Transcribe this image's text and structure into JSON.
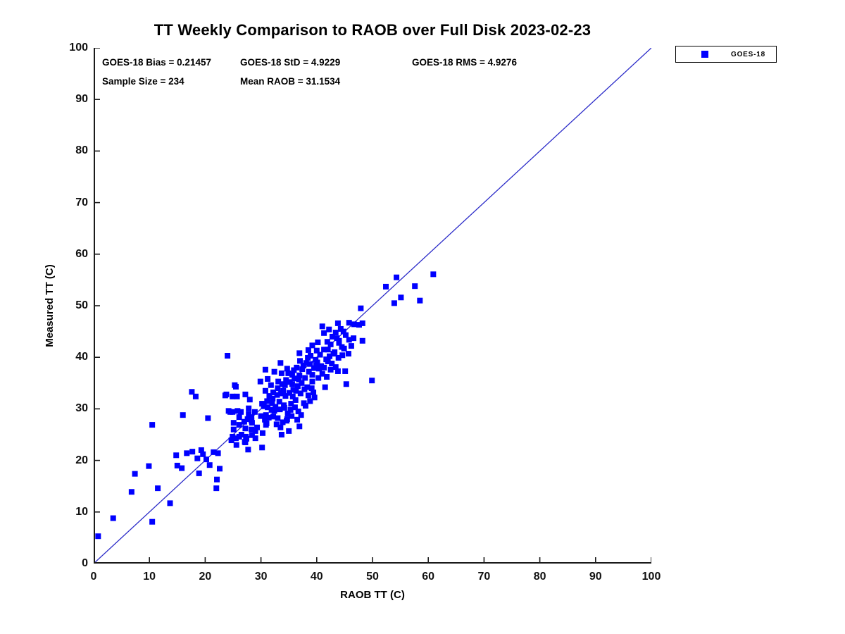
{
  "title": "TT Weekly Comparison to RAOB over Full Disk 2023-02-23",
  "annotations": {
    "bias": "GOES-18 Bias = 0.21457",
    "std": "GOES-18 StD = 4.9229",
    "rms": "GOES-18 RMS = 4.9276",
    "sample": "Sample Size = 234",
    "mean_raob": "Mean RAOB = 31.1534"
  },
  "legend": {
    "items": [
      {
        "label": "GOES-18",
        "marker_color": "#0000ff"
      }
    ]
  },
  "colors": {
    "marker": "#0000ff",
    "reference_line": "#2a2ac8",
    "axis": "#1a1a1a",
    "text": "#000000"
  },
  "chart_data": {
    "type": "scatter",
    "title": "TT Weekly Comparison to RAOB over Full Disk 2023-02-23",
    "xlabel": "RAOB TT (C)",
    "ylabel": "Measured TT (C)",
    "xlim": [
      0,
      100
    ],
    "ylim": [
      0,
      100
    ],
    "xticks": [
      0,
      10,
      20,
      30,
      40,
      50,
      60,
      70,
      80,
      90,
      100
    ],
    "yticks": [
      0,
      10,
      20,
      30,
      40,
      50,
      60,
      70,
      80,
      90,
      100
    ],
    "grid": false,
    "legend_position": "top-right-outside",
    "stats": {
      "bias": 0.21457,
      "std": 4.9229,
      "rms": 4.9276,
      "sample_size": 234,
      "mean_raob": 31.1534
    },
    "reference_line": {
      "from": [
        0,
        0
      ],
      "to": [
        100,
        100
      ]
    },
    "series": [
      {
        "name": "GOES-18",
        "marker": "square",
        "color": "#0000ff",
        "points": [
          [
            0.8,
            5.3
          ],
          [
            3.5,
            8.8
          ],
          [
            6.8,
            13.9
          ],
          [
            7.4,
            17.4
          ],
          [
            9.9,
            18.9
          ],
          [
            11.5,
            14.6
          ],
          [
            10.5,
            8.1
          ],
          [
            13.7,
            11.7
          ],
          [
            10.5,
            26.9
          ],
          [
            15.0,
            19.0
          ],
          [
            14.8,
            21.0
          ],
          [
            16.0,
            28.8
          ],
          [
            16.7,
            21.4
          ],
          [
            18.6,
            20.4
          ],
          [
            19.6,
            21.2
          ],
          [
            20.8,
            19.1
          ],
          [
            22.3,
            21.4
          ],
          [
            22.6,
            18.4
          ],
          [
            22.1,
            16.3
          ],
          [
            22.0,
            14.6
          ],
          [
            17.7,
            21.7
          ],
          [
            19.3,
            22.0
          ],
          [
            15.8,
            18.5
          ],
          [
            18.9,
            17.5
          ],
          [
            20.2,
            20.2
          ],
          [
            17.6,
            33.3
          ],
          [
            18.3,
            32.4
          ],
          [
            20.5,
            28.2
          ],
          [
            23.6,
            32.6
          ],
          [
            24.9,
            32.4
          ],
          [
            25.5,
            34.3
          ],
          [
            24.5,
            29.4
          ],
          [
            25.1,
            27.3
          ],
          [
            26.4,
            29.4
          ],
          [
            27.0,
            27.5
          ],
          [
            26.5,
            25.0
          ],
          [
            27.1,
            23.6
          ],
          [
            27.8,
            29.0
          ],
          [
            28.3,
            27.7
          ],
          [
            29.0,
            25.7
          ],
          [
            27.7,
            22.1
          ],
          [
            24.0,
            40.3
          ],
          [
            23.8,
            32.8
          ],
          [
            25.3,
            34.6
          ],
          [
            27.2,
            32.8
          ],
          [
            25.7,
            32.4
          ],
          [
            24.2,
            29.6
          ],
          [
            25.8,
            29.6
          ],
          [
            24.9,
            24.6
          ],
          [
            26.1,
            24.6
          ],
          [
            25.6,
            23.0
          ],
          [
            27.2,
            23.5
          ],
          [
            29.0,
            24.3
          ],
          [
            24.7,
            23.9
          ],
          [
            25.1,
            26.0
          ],
          [
            26.1,
            26.9
          ],
          [
            27.2,
            26.2
          ],
          [
            28.3,
            26.0
          ],
          [
            29.3,
            26.4
          ],
          [
            25.5,
            24.3
          ],
          [
            27.4,
            24.2
          ],
          [
            30.3,
            25.3
          ],
          [
            30.2,
            22.5
          ],
          [
            28.4,
            24.9
          ],
          [
            27.3,
            24.6
          ],
          [
            30.9,
            26.9
          ],
          [
            24.9,
            29.4
          ],
          [
            26.1,
            28.4
          ],
          [
            27.6,
            28.0
          ],
          [
            28.4,
            27.3
          ],
          [
            27.8,
            30.1
          ],
          [
            28.9,
            29.4
          ],
          [
            30.2,
            31.0
          ],
          [
            31.2,
            30.3
          ],
          [
            32.0,
            31.1
          ],
          [
            33.3,
            31.4
          ],
          [
            34.1,
            30.7
          ],
          [
            35.4,
            31.0
          ],
          [
            36.2,
            31.7
          ],
          [
            37.7,
            31.1
          ],
          [
            32.8,
            27.0
          ],
          [
            34.6,
            27.7
          ],
          [
            35.0,
            25.7
          ],
          [
            36.9,
            26.6
          ],
          [
            33.7,
            25.0
          ],
          [
            32.4,
            29.6
          ],
          [
            33.5,
            26.4
          ],
          [
            34.7,
            28.0
          ],
          [
            28.3,
            28.4
          ],
          [
            30.9,
            28.8
          ],
          [
            31.8,
            34.6
          ],
          [
            33.1,
            35.3
          ],
          [
            34.3,
            34.6
          ],
          [
            35.6,
            34.8
          ],
          [
            35.8,
            33.7
          ],
          [
            34.0,
            33.5
          ],
          [
            32.2,
            33.2
          ],
          [
            30.8,
            33.5
          ],
          [
            29.9,
            35.3
          ],
          [
            31.2,
            35.8
          ],
          [
            30.8,
            37.6
          ],
          [
            32.4,
            37.2
          ],
          [
            33.7,
            36.9
          ],
          [
            35.6,
            36.6
          ],
          [
            36.9,
            36.5
          ],
          [
            39.2,
            36.6
          ],
          [
            40.4,
            37.8
          ],
          [
            41.3,
            38.0
          ],
          [
            42.5,
            37.6
          ],
          [
            43.8,
            37.3
          ],
          [
            33.5,
            38.9
          ],
          [
            34.7,
            37.8
          ],
          [
            37.0,
            39.3
          ],
          [
            38.8,
            38.7
          ],
          [
            36.9,
            40.8
          ],
          [
            38.5,
            41.4
          ],
          [
            39.2,
            42.3
          ],
          [
            40.2,
            42.9
          ],
          [
            41.3,
            44.7
          ],
          [
            44.0,
            43.2
          ],
          [
            45.8,
            43.4
          ],
          [
            42.0,
            41.5
          ],
          [
            43.0,
            40.7
          ],
          [
            44.9,
            41.7
          ],
          [
            45.7,
            40.7
          ],
          [
            39.2,
            35.3
          ],
          [
            39.4,
            33.2
          ],
          [
            38.3,
            34.2
          ],
          [
            41.5,
            34.2
          ],
          [
            45.3,
            34.8
          ],
          [
            49.9,
            35.5
          ],
          [
            38.4,
            39.9
          ],
          [
            40.0,
            41.3
          ],
          [
            41.3,
            41.5
          ],
          [
            39.9,
            38.4
          ],
          [
            42.0,
            39.2
          ],
          [
            43.4,
            38.1
          ],
          [
            45.1,
            37.3
          ],
          [
            41.0,
            46.0
          ],
          [
            42.2,
            45.4
          ],
          [
            43.8,
            46.6
          ],
          [
            44.3,
            45.5
          ],
          [
            45.8,
            46.7
          ],
          [
            46.7,
            46.4
          ],
          [
            47.6,
            46.3
          ],
          [
            48.2,
            46.6
          ],
          [
            43.6,
            43.7
          ],
          [
            46.6,
            43.7
          ],
          [
            48.2,
            43.2
          ],
          [
            42.5,
            42.5
          ],
          [
            44.0,
            42.8
          ],
          [
            47.9,
            49.5
          ],
          [
            52.4,
            53.7
          ],
          [
            54.3,
            55.5
          ],
          [
            60.9,
            56.1
          ],
          [
            57.6,
            53.8
          ],
          [
            55.1,
            51.6
          ],
          [
            58.5,
            51.0
          ],
          [
            53.9,
            50.5
          ],
          [
            33.0,
            34.0
          ],
          [
            33.8,
            34.8
          ],
          [
            34.5,
            35.6
          ],
          [
            35.2,
            35.2
          ],
          [
            36.0,
            35.9
          ],
          [
            36.6,
            34.4
          ],
          [
            37.3,
            35.0
          ],
          [
            37.9,
            36.0
          ],
          [
            38.6,
            37.2
          ],
          [
            39.5,
            37.9
          ],
          [
            40.1,
            39.0
          ],
          [
            40.8,
            38.3
          ],
          [
            41.7,
            39.6
          ],
          [
            42.3,
            40.2
          ],
          [
            43.2,
            41.0
          ],
          [
            44.5,
            42.0
          ],
          [
            36.4,
            38.0
          ],
          [
            37.6,
            38.4
          ],
          [
            38.9,
            40.3
          ],
          [
            40.6,
            40.5
          ],
          [
            41.9,
            43.0
          ],
          [
            42.8,
            44.0
          ],
          [
            43.4,
            44.8
          ],
          [
            44.8,
            45.0
          ],
          [
            45.2,
            44.3
          ],
          [
            34.9,
            36.9
          ],
          [
            35.9,
            37.5
          ],
          [
            36.8,
            35.7
          ],
          [
            37.4,
            37.7
          ],
          [
            38.1,
            38.9
          ],
          [
            39.8,
            39.5
          ],
          [
            31.5,
            32.5
          ],
          [
            32.1,
            32.0
          ],
          [
            32.9,
            32.7
          ],
          [
            33.6,
            33.0
          ],
          [
            34.4,
            32.5
          ],
          [
            35.1,
            33.1
          ],
          [
            35.7,
            32.4
          ],
          [
            36.3,
            33.5
          ],
          [
            37.1,
            33.0
          ],
          [
            37.8,
            33.8
          ],
          [
            38.5,
            32.6
          ],
          [
            39.1,
            34.0
          ],
          [
            30.5,
            30.5
          ],
          [
            31.1,
            31.5
          ],
          [
            31.9,
            29.8
          ],
          [
            32.6,
            30.4
          ],
          [
            33.4,
            29.9
          ],
          [
            34.2,
            30.2
          ],
          [
            35.3,
            29.8
          ],
          [
            36.1,
            30.3
          ],
          [
            36.7,
            29.5
          ],
          [
            30.0,
            28.6
          ],
          [
            30.7,
            27.9
          ],
          [
            31.4,
            28.3
          ],
          [
            32.2,
            28.5
          ],
          [
            33.0,
            28.2
          ],
          [
            33.9,
            27.4
          ],
          [
            34.8,
            29.1
          ],
          [
            35.5,
            28.6
          ],
          [
            36.5,
            27.9
          ],
          [
            37.2,
            28.8
          ],
          [
            38.0,
            30.6
          ],
          [
            38.8,
            31.5
          ],
          [
            39.6,
            32.2
          ],
          [
            40.3,
            36.0
          ],
          [
            41.0,
            36.8
          ],
          [
            41.8,
            36.2
          ],
          [
            42.7,
            38.8
          ],
          [
            43.9,
            39.9
          ],
          [
            44.6,
            40.4
          ],
          [
            46.2,
            42.2
          ],
          [
            21.5,
            21.6
          ],
          [
            28.0,
            31.8
          ],
          [
            31.0,
            27.2
          ]
        ]
      }
    ]
  }
}
